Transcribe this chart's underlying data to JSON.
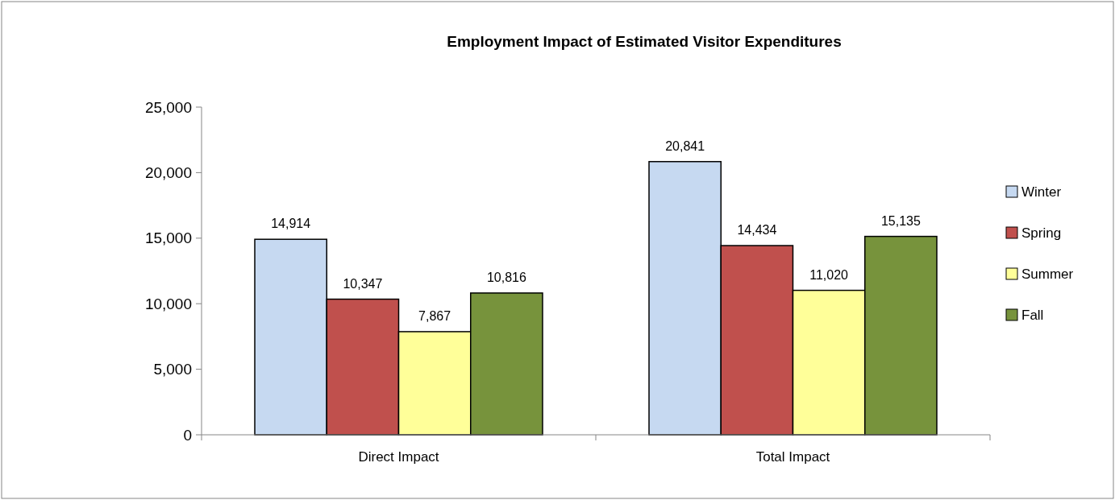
{
  "chart_data": {
    "type": "bar",
    "title": "Employment Impact of Estimated Visitor Expenditures",
    "categories": [
      "Direct Impact",
      "Total Impact"
    ],
    "series": [
      {
        "name": "Winter",
        "color": "#c6d9f1",
        "values": [
          14914,
          20841
        ]
      },
      {
        "name": "Spring",
        "color": "#c0504d",
        "values": [
          10347,
          14434
        ]
      },
      {
        "name": "Summer",
        "color": "#ffff99",
        "values": [
          7867,
          11020
        ]
      },
      {
        "name": "Fall",
        "color": "#77933c",
        "values": [
          10816,
          15135
        ]
      }
    ],
    "value_labels": [
      [
        "14,914",
        "20,841"
      ],
      [
        "10,347",
        "14,434"
      ],
      [
        "7,867",
        "11,020"
      ],
      [
        "10,816",
        "15,135"
      ]
    ],
    "ylim": [
      0,
      25000
    ],
    "yticks": [
      {
        "value": 0,
        "label": "0"
      },
      {
        "value": 5000,
        "label": "5,000"
      },
      {
        "value": 10000,
        "label": "10,000"
      },
      {
        "value": 15000,
        "label": "15,000"
      },
      {
        "value": 20000,
        "label": "20,000"
      },
      {
        "value": 25000,
        "label": "25,000"
      }
    ],
    "grid": false,
    "legend": "right"
  }
}
